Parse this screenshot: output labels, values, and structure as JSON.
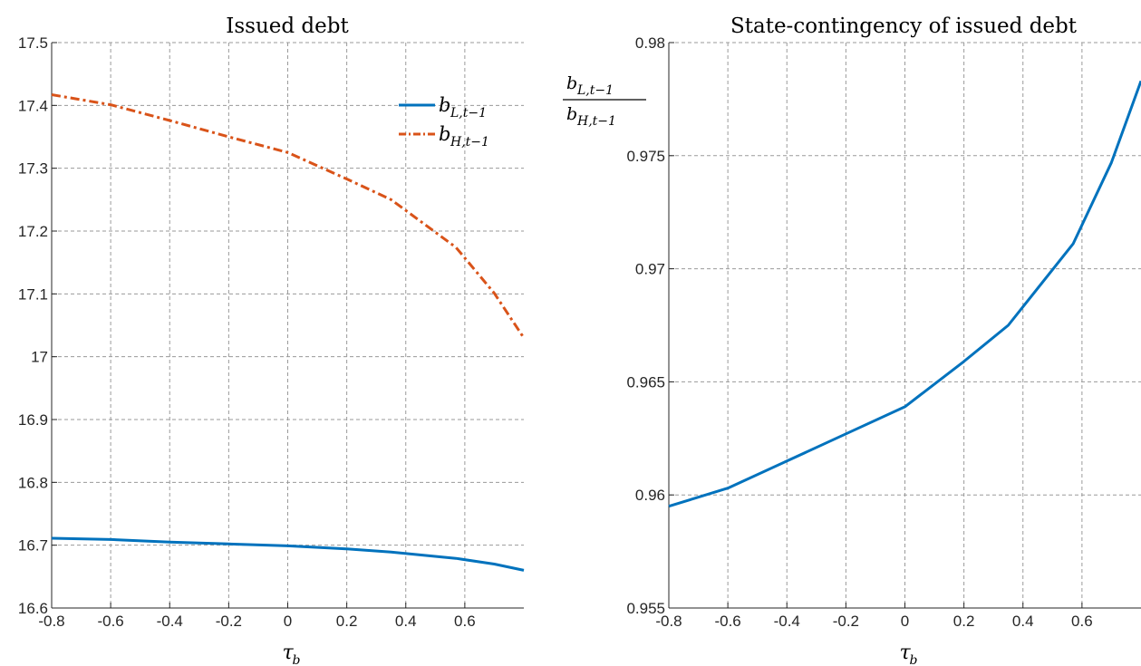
{
  "chart_data": [
    {
      "type": "line",
      "title": "Issued debt",
      "xlabel": "τ_b",
      "ylabel": "",
      "xlim": [
        -0.8,
        0.8
      ],
      "ylim": [
        16.6,
        17.5
      ],
      "xticks": [
        "-0.8",
        "-0.6",
        "-0.4",
        "-0.2",
        "0",
        "0.2",
        "0.4",
        "0.6"
      ],
      "yticks": [
        "16.6",
        "16.7",
        "16.8",
        "16.9",
        "17",
        "17.1",
        "17.2",
        "17.3",
        "17.4",
        "17.5"
      ],
      "grid": true,
      "legend_position": "top-right",
      "series": [
        {
          "name": "b_{L,t-1}",
          "color": "#0072BD",
          "style": "solid",
          "x": [
            -0.8,
            -0.6,
            -0.4,
            -0.2,
            0,
            0.2,
            0.35,
            0.57,
            0.7,
            0.8
          ],
          "y": [
            16.711,
            16.709,
            16.705,
            16.702,
            16.699,
            16.694,
            16.689,
            16.679,
            16.67,
            16.66
          ]
        },
        {
          "name": "b_{H,t-1}",
          "color": "#D95319",
          "style": "dash-dot",
          "x": [
            -0.8,
            -0.6,
            -0.4,
            -0.2,
            0,
            0.2,
            0.35,
            0.57,
            0.7,
            0.8
          ],
          "y": [
            17.417,
            17.401,
            17.376,
            17.35,
            17.325,
            17.283,
            17.25,
            17.174,
            17.101,
            17.03
          ]
        }
      ]
    },
    {
      "type": "line",
      "title": "State-contingency of issued debt",
      "xlabel": "τ_b",
      "ylabel": "b_{L,t-1} / b_{H,t-1}",
      "xlim": [
        -0.8,
        0.8
      ],
      "ylim": [
        0.955,
        0.98
      ],
      "xticks": [
        "-0.8",
        "-0.6",
        "-0.4",
        "-0.2",
        "0",
        "0.2",
        "0.4",
        "0.6"
      ],
      "yticks": [
        "0.955",
        "0.96",
        "0.965",
        "0.97",
        "0.975",
        "0.98"
      ],
      "grid": true,
      "series": [
        {
          "name": "",
          "color": "#0072BD",
          "style": "solid",
          "x": [
            -0.8,
            -0.6,
            -0.4,
            -0.2,
            0,
            0.2,
            0.35,
            0.57,
            0.7,
            0.8
          ],
          "y": [
            0.9595,
            0.9603,
            0.9615,
            0.9627,
            0.9639,
            0.9659,
            0.9675,
            0.9711,
            0.9747,
            0.9783
          ]
        }
      ]
    }
  ]
}
